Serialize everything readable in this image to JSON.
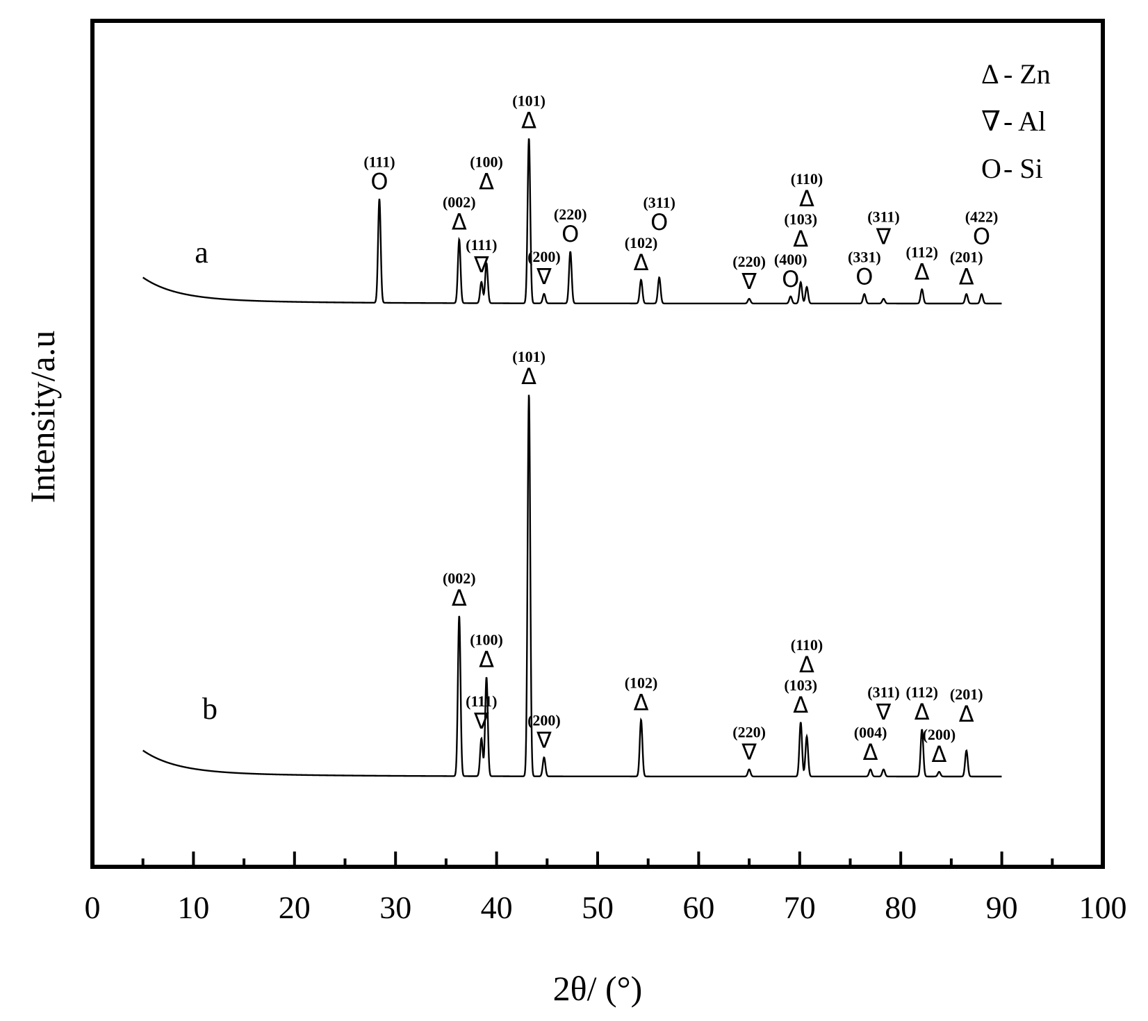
{
  "chart_data": {
    "type": "line",
    "xlabel": "2θ/ (°)",
    "ylabel": "Intensity/a.u",
    "xlim": [
      0,
      100
    ],
    "x_ticks": [
      "0",
      "10",
      "20",
      "30",
      "40",
      "50",
      "60",
      "70",
      "80",
      "90",
      "100"
    ],
    "legend": {
      "placement": "top-right",
      "entries": [
        {
          "symbol": "Δ",
          "label": "- Zn"
        },
        {
          "symbol": "∇",
          "label": "- Al"
        },
        {
          "symbol": "O",
          "label": "- Si"
        }
      ]
    },
    "series": [
      {
        "name": "a",
        "x_range": [
          5,
          90
        ],
        "baseline_start": 1.0,
        "peaks": [
          {
            "x": 28.4,
            "h": 0.44
          },
          {
            "x": 36.3,
            "h": 0.27
          },
          {
            "x": 38.5,
            "h": 0.09
          },
          {
            "x": 39.0,
            "h": 0.17
          },
          {
            "x": 43.2,
            "h": 0.7
          },
          {
            "x": 44.7,
            "h": 0.04
          },
          {
            "x": 47.3,
            "h": 0.22
          },
          {
            "x": 54.3,
            "h": 0.1
          },
          {
            "x": 56.1,
            "h": 0.11
          },
          {
            "x": 65.0,
            "h": 0.02
          },
          {
            "x": 69.1,
            "h": 0.03
          },
          {
            "x": 70.1,
            "h": 0.09
          },
          {
            "x": 70.7,
            "h": 0.07
          },
          {
            "x": 76.4,
            "h": 0.04
          },
          {
            "x": 78.3,
            "h": 0.02
          },
          {
            "x": 82.1,
            "h": 0.06
          },
          {
            "x": 86.5,
            "h": 0.04
          },
          {
            "x": 88.0,
            "h": 0.04
          }
        ],
        "annotations": [
          {
            "hkl": "(111)",
            "sym": "O",
            "x": 28.4
          },
          {
            "hkl": "(002)",
            "sym": "Δ",
            "x": 36.3
          },
          {
            "hkl": "(100)",
            "sym": "Δ",
            "x": 39.0
          },
          {
            "hkl": "(111)",
            "sym": "∇",
            "x": 38.5
          },
          {
            "hkl": "(101)",
            "sym": "Δ",
            "x": 43.2
          },
          {
            "hkl": "(200)",
            "sym": "∇",
            "x": 44.7
          },
          {
            "hkl": "(220)",
            "sym": "O",
            "x": 47.3
          },
          {
            "hkl": "(102)",
            "sym": "Δ",
            "x": 54.3
          },
          {
            "hkl": "(311)",
            "sym": "O",
            "x": 56.1
          },
          {
            "hkl": "(220)",
            "sym": "∇",
            "x": 65.0
          },
          {
            "hkl": "(400)",
            "sym": "O",
            "x": 69.1
          },
          {
            "hkl": "(103)",
            "sym": "Δ",
            "x": 70.1
          },
          {
            "hkl": "(110)",
            "sym": "Δ",
            "x": 70.7
          },
          {
            "hkl": "(331)",
            "sym": "O",
            "x": 76.4
          },
          {
            "hkl": "(311)",
            "sym": "∇",
            "x": 78.3
          },
          {
            "hkl": "(112)",
            "sym": "Δ",
            "x": 82.1
          },
          {
            "hkl": "(201)",
            "sym": "Δ",
            "x": 86.5
          },
          {
            "hkl": "(422)",
            "sym": "O",
            "x": 88.0
          }
        ]
      },
      {
        "name": "b",
        "x_range": [
          5,
          90
        ],
        "baseline_start": 1.0,
        "peaks": [
          {
            "x": 36.3,
            "h": 0.68
          },
          {
            "x": 38.5,
            "h": 0.16
          },
          {
            "x": 39.0,
            "h": 0.42
          },
          {
            "x": 43.2,
            "h": 1.62
          },
          {
            "x": 44.7,
            "h": 0.08
          },
          {
            "x": 54.3,
            "h": 0.24
          },
          {
            "x": 65.0,
            "h": 0.03
          },
          {
            "x": 70.1,
            "h": 0.23
          },
          {
            "x": 70.7,
            "h": 0.17
          },
          {
            "x": 77.0,
            "h": 0.03
          },
          {
            "x": 78.3,
            "h": 0.03
          },
          {
            "x": 82.1,
            "h": 0.2
          },
          {
            "x": 83.8,
            "h": 0.02
          },
          {
            "x": 86.5,
            "h": 0.11
          }
        ],
        "annotations": [
          {
            "hkl": "(002)",
            "sym": "Δ",
            "x": 36.3
          },
          {
            "hkl": "(100)",
            "sym": "Δ",
            "x": 39.0
          },
          {
            "hkl": "(111)",
            "sym": "∇",
            "x": 38.5
          },
          {
            "hkl": "(101)",
            "sym": "Δ",
            "x": 43.2
          },
          {
            "hkl": "(200)",
            "sym": "∇",
            "x": 44.7
          },
          {
            "hkl": "(102)",
            "sym": "Δ",
            "x": 54.3
          },
          {
            "hkl": "(220)",
            "sym": "∇",
            "x": 65.0
          },
          {
            "hkl": "(103)",
            "sym": "Δ",
            "x": 70.1
          },
          {
            "hkl": "(110)",
            "sym": "Δ",
            "x": 70.7
          },
          {
            "hkl": "(004)",
            "sym": "Δ",
            "x": 77.0
          },
          {
            "hkl": "(311)",
            "sym": "∇",
            "x": 78.3
          },
          {
            "hkl": "(112)",
            "sym": "Δ",
            "x": 82.1
          },
          {
            "hkl": "(200)",
            "sym": "Δ",
            "x": 83.8
          },
          {
            "hkl": "(201)",
            "sym": "Δ",
            "x": 86.5
          }
        ]
      }
    ]
  }
}
